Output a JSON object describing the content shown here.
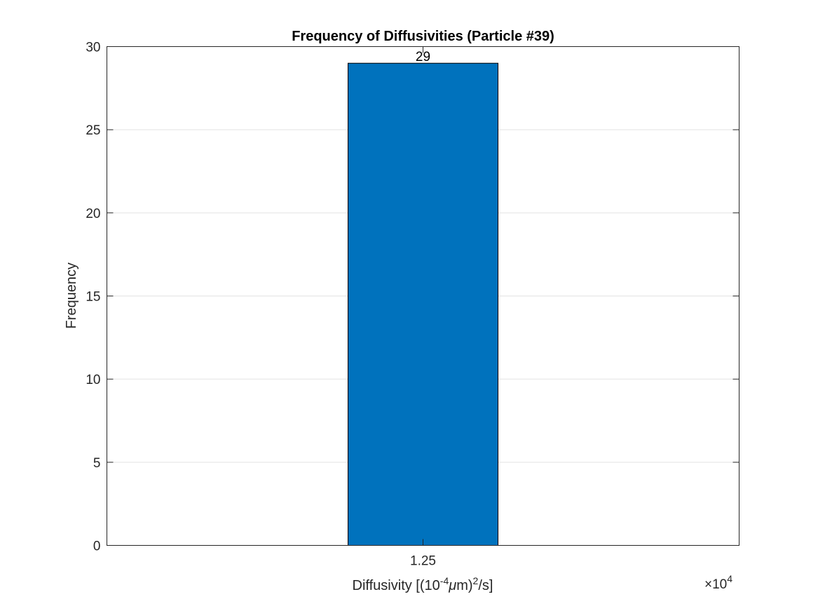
{
  "chart_data": {
    "type": "bar",
    "title": "Frequency of Diffusivities (Particle #39)",
    "xlabel": {
      "prefix": "Diffusivity [(10",
      "exp": "-4",
      "mu": "μ",
      "unit_m": "m)",
      "sq": "2",
      "suffix": "/s]"
    },
    "ylabel": "Frequency",
    "categories": [
      "1.25"
    ],
    "values": [
      29
    ],
    "data_labels": [
      "29"
    ],
    "ylim": [
      0,
      30
    ],
    "yticks": [
      0,
      5,
      10,
      15,
      20,
      25,
      30
    ],
    "x_multiplier": {
      "times": "×",
      "base": "10",
      "exp": "4"
    },
    "grid": "horizontal",
    "bar_color": "#0072BD",
    "bar_edge_color": "#000000"
  }
}
